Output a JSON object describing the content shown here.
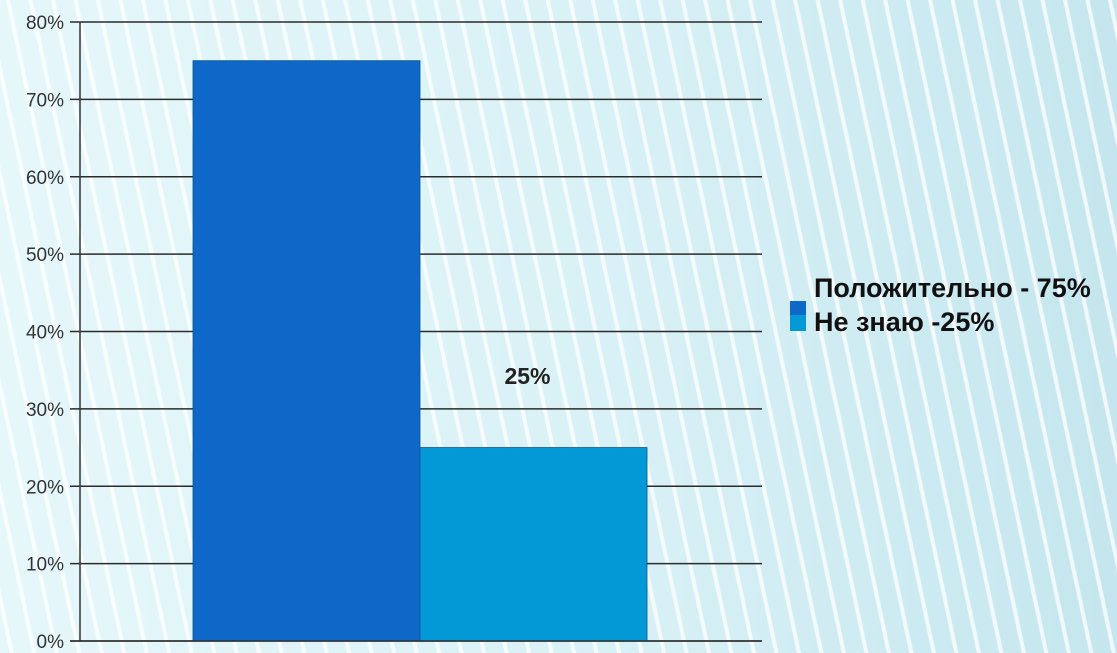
{
  "chart_data": {
    "type": "bar",
    "categories": [
      "",
      ""
    ],
    "values": [
      75,
      25
    ],
    "colors": [
      "#0e68c8",
      "#0399d6"
    ],
    "ylim": [
      0,
      80
    ],
    "yticks": [
      "0%",
      "10%",
      "20%",
      "30%",
      "40%",
      "50%",
      "60%",
      "70%",
      "80%"
    ],
    "data_labels": [
      "",
      "25%"
    ],
    "grid": true,
    "legend_position": "right",
    "legend": [
      {
        "label": "Положительно - 75%",
        "color": "#0e68c8"
      },
      {
        "label": "Не знаю -25%",
        "color": "#0399d6"
      }
    ]
  }
}
